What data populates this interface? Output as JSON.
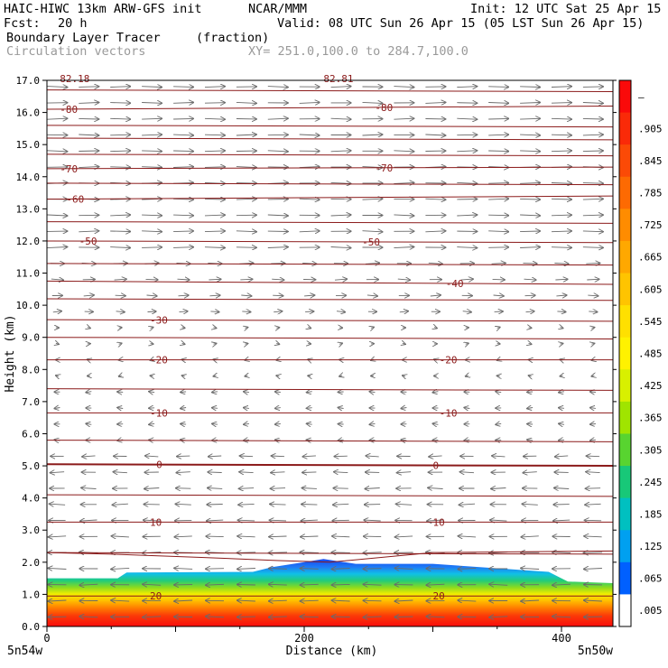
{
  "header": {
    "model": "HAIC-HIWC 13km ARW-GFS init",
    "org": "NCAR/MMM",
    "init": "Init: 12 UTC Sat 25 Apr 15",
    "fcst_label": "Fcst:",
    "fcst_value": "20 h",
    "valid": "Valid: 08 UTC Sun 26 Apr 15 (05 LST Sun 26 Apr 15)",
    "field": "Boundary Layer Tracer",
    "field_units": "(fraction)",
    "vectors": "Circulation vectors",
    "xy": "XY= 251.0,100.0 to 284.7,100.0"
  },
  "chart_data": {
    "type": "heatmap",
    "xlabel": "Distance (km)",
    "ylabel": "Height (km)",
    "xlim": [
      0,
      440
    ],
    "ylim": [
      0,
      17
    ],
    "x_ticks": [
      0,
      200,
      400
    ],
    "y_ticks": [
      "0.0",
      "1.0",
      "2.0",
      "3.0",
      "4.0",
      "5.0",
      "6.0",
      "7.0",
      "8.0",
      "9.0",
      "10.0",
      "11.0",
      "12.0",
      "13.0",
      "14.0",
      "15.0",
      "16.0",
      "17.0"
    ],
    "x_endpoints": [
      "5n54w",
      "5n50w"
    ],
    "tracer_top_km": [
      [
        0,
        1.5
      ],
      [
        55,
        1.5
      ],
      [
        62,
        1.68
      ],
      [
        160,
        1.7
      ],
      [
        175,
        1.85
      ],
      [
        200,
        2.0
      ],
      [
        215,
        2.1
      ],
      [
        240,
        1.95
      ],
      [
        300,
        1.95
      ],
      [
        390,
        1.7
      ],
      [
        405,
        1.4
      ],
      [
        440,
        1.35
      ]
    ],
    "colorbar": {
      "labels": [
        "–",
        ".905",
        ".845",
        ".785",
        ".725",
        ".665",
        ".605",
        ".545",
        ".485",
        ".425",
        ".365",
        ".305",
        ".245",
        ".185",
        ".125",
        ".065",
        ".005"
      ],
      "colors": [
        "#fa0a0a",
        "#fa2a08",
        "#fb4a06",
        "#fd6a02",
        "#ff8c00",
        "#ffa800",
        "#ffc400",
        "#ffe000",
        "#fff200",
        "#d8f000",
        "#a0e400",
        "#58d430",
        "#18c878",
        "#00c0c0",
        "#00a0f0",
        "#0060ff",
        "#ffffff"
      ]
    },
    "isotherms": [
      {
        "label": "82.18",
        "y_left": 17.05,
        "y_right": 17.05,
        "label_x": [
          10
        ],
        "row": -1
      },
      {
        "label": "82.81",
        "y_left": 17.05,
        "y_right": 17.05,
        "label_x": [
          215
        ],
        "row": -1
      },
      {
        "label": "-80",
        "y_left": 16.1,
        "y_right": 16.2,
        "label_x": [
          10,
          255
        ],
        "row": 0
      },
      {
        "label": "-70",
        "y_left": 14.25,
        "y_right": 14.3,
        "label_x": [
          10,
          255
        ],
        "row": 1
      },
      {
        "label": "-60",
        "y_left": 13.3,
        "y_right": 13.4,
        "label_x": [
          15
        ],
        "row": 2
      },
      {
        "label": "-50",
        "y_left": 12.0,
        "y_right": 11.95,
        "label_x": [
          25,
          245
        ],
        "row": 3
      },
      {
        "label": "-40",
        "y_left": 10.75,
        "y_right": 10.65,
        "label_x": [
          310
        ],
        "row": 4
      },
      {
        "label": "-30",
        "y_left": 9.55,
        "y_right": 9.5,
        "label_x": [
          80
        ],
        "row": 5
      },
      {
        "label": "-20",
        "y_left": 8.3,
        "y_right": 8.3,
        "label_x": [
          80,
          305
        ],
        "row": 6
      },
      {
        "label": "-10",
        "y_left": 6.65,
        "y_right": 6.65,
        "label_x": [
          80,
          305
        ],
        "row": 7
      },
      {
        "label": "0",
        "y_left": 5.05,
        "y_right": 5.0,
        "label_x": [
          85,
          300
        ],
        "row": 8
      },
      {
        "label": "10",
        "y_left": 3.25,
        "y_right": 3.25,
        "label_x": [
          80,
          300
        ],
        "row": 9
      },
      {
        "label": "20",
        "y_left": 0.95,
        "y_right": 0.95,
        "label_x": [
          80,
          300
        ],
        "row": 10
      }
    ],
    "minor_isotherms_km": [
      16.7,
      15.6,
      15.2,
      14.7,
      13.8,
      12.6,
      11.3,
      10.2,
      9.0,
      7.4,
      5.8,
      4.1,
      2.3
    ]
  },
  "colors": {
    "contour": "#8b1a1a",
    "vector": "#6a6a6a",
    "tracer_top": "#1040f0"
  }
}
